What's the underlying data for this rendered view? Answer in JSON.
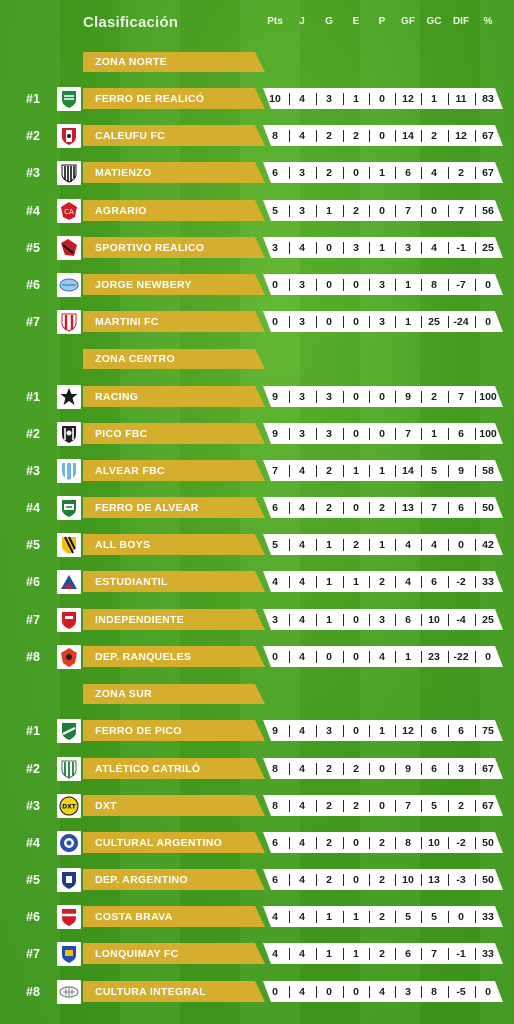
{
  "header": {
    "title": "Clasificación",
    "columns": [
      "Pts",
      "J",
      "G",
      "E",
      "P",
      "GF",
      "GC",
      "DIF",
      "%"
    ]
  },
  "zones": [
    {
      "name": "ZONA NORTE",
      "teams": [
        {
          "rank": "#1",
          "name": "FERRO DE REALICÓ",
          "badge": "ferro-realico",
          "stats": [
            "10",
            "4",
            "3",
            "1",
            "0",
            "12",
            "1",
            "11",
            "83"
          ]
        },
        {
          "rank": "#2",
          "name": "CALEUFU FC",
          "badge": "caleufu",
          "stats": [
            "8",
            "4",
            "2",
            "2",
            "0",
            "14",
            "2",
            "12",
            "67"
          ]
        },
        {
          "rank": "#3",
          "name": "MATIENZO",
          "badge": "matienzo",
          "stats": [
            "6",
            "3",
            "2",
            "0",
            "1",
            "6",
            "4",
            "2",
            "67"
          ]
        },
        {
          "rank": "#4",
          "name": "AGRARIO",
          "badge": "agrario",
          "stats": [
            "5",
            "3",
            "1",
            "2",
            "0",
            "7",
            "0",
            "7",
            "56"
          ]
        },
        {
          "rank": "#5",
          "name": "SPORTIVO REALICO",
          "badge": "sportivo-realico",
          "stats": [
            "3",
            "4",
            "0",
            "3",
            "1",
            "3",
            "4",
            "-1",
            "25"
          ]
        },
        {
          "rank": "#6",
          "name": "JORGE NEWBERY",
          "badge": "jorge-newbery",
          "stats": [
            "0",
            "3",
            "0",
            "0",
            "3",
            "1",
            "8",
            "-7",
            "0"
          ]
        },
        {
          "rank": "#7",
          "name": "MARTINI FC",
          "badge": "martini",
          "stats": [
            "0",
            "3",
            "0",
            "0",
            "3",
            "1",
            "25",
            "-24",
            "0"
          ]
        }
      ]
    },
    {
      "name": "ZONA CENTRO",
      "teams": [
        {
          "rank": "#1",
          "name": "RACING",
          "badge": "racing",
          "stats": [
            "9",
            "3",
            "3",
            "0",
            "0",
            "9",
            "2",
            "7",
            "100"
          ]
        },
        {
          "rank": "#2",
          "name": "PICO FBC",
          "badge": "pico-fbc",
          "stats": [
            "9",
            "3",
            "3",
            "0",
            "0",
            "7",
            "1",
            "6",
            "100"
          ]
        },
        {
          "rank": "#3",
          "name": "ALVEAR FBC",
          "badge": "alvear-fbc",
          "stats": [
            "7",
            "4",
            "2",
            "1",
            "1",
            "14",
            "5",
            "9",
            "58"
          ]
        },
        {
          "rank": "#4",
          "name": "FERRO DE ALVEAR",
          "badge": "ferro-alvear",
          "stats": [
            "6",
            "4",
            "2",
            "0",
            "2",
            "13",
            "7",
            "6",
            "50"
          ]
        },
        {
          "rank": "#5",
          "name": "ALL BOYS",
          "badge": "all-boys",
          "stats": [
            "5",
            "4",
            "1",
            "2",
            "1",
            "4",
            "4",
            "0",
            "42"
          ]
        },
        {
          "rank": "#6",
          "name": "ESTUDIANTIL",
          "badge": "estudiantil",
          "stats": [
            "4",
            "4",
            "1",
            "1",
            "2",
            "4",
            "6",
            "-2",
            "33"
          ]
        },
        {
          "rank": "#7",
          "name": "INDEPENDIENTE",
          "badge": "independiente",
          "stats": [
            "3",
            "4",
            "1",
            "0",
            "3",
            "6",
            "10",
            "-4",
            "25"
          ]
        },
        {
          "rank": "#8",
          "name": "DEP. RANQUELES",
          "badge": "ranqueles",
          "stats": [
            "0",
            "4",
            "0",
            "0",
            "4",
            "1",
            "23",
            "-22",
            "0"
          ]
        }
      ]
    },
    {
      "name": "ZONA SUR",
      "teams": [
        {
          "rank": "#1",
          "name": "FERRO DE PICO",
          "badge": "ferro-pico",
          "stats": [
            "9",
            "4",
            "3",
            "0",
            "1",
            "12",
            "6",
            "6",
            "75"
          ]
        },
        {
          "rank": "#2",
          "name": "ATLÉTICO CATRILÓ",
          "badge": "catrilo",
          "stats": [
            "8",
            "4",
            "2",
            "2",
            "0",
            "9",
            "6",
            "3",
            "67"
          ]
        },
        {
          "rank": "#3",
          "name": "DXT",
          "badge": "dxt",
          "stats": [
            "8",
            "4",
            "2",
            "2",
            "0",
            "7",
            "5",
            "2",
            "67"
          ]
        },
        {
          "rank": "#4",
          "name": "CULTURAL ARGENTINO",
          "badge": "cultural-argentino",
          "stats": [
            "6",
            "4",
            "2",
            "0",
            "2",
            "8",
            "10",
            "-2",
            "50"
          ]
        },
        {
          "rank": "#5",
          "name": "DEP. ARGENTINO",
          "badge": "dep-argentino",
          "stats": [
            "6",
            "4",
            "2",
            "0",
            "2",
            "10",
            "13",
            "-3",
            "50"
          ]
        },
        {
          "rank": "#6",
          "name": "COSTA BRAVA",
          "badge": "costa-brava",
          "stats": [
            "4",
            "4",
            "1",
            "1",
            "2",
            "5",
            "5",
            "0",
            "33"
          ]
        },
        {
          "rank": "#7",
          "name": "LONQUIMAY FC",
          "badge": "lonquimay",
          "stats": [
            "4",
            "4",
            "1",
            "1",
            "2",
            "6",
            "7",
            "-1",
            "33"
          ]
        },
        {
          "rank": "#8",
          "name": "CULTURA INTEGRAL",
          "badge": "cultura-integral",
          "stats": [
            "0",
            "4",
            "0",
            "0",
            "4",
            "3",
            "8",
            "-5",
            "0"
          ]
        }
      ]
    }
  ],
  "colors": {
    "bar": "#d4ae2c",
    "background": "#47a020",
    "stats_bg": "#ffffff"
  }
}
